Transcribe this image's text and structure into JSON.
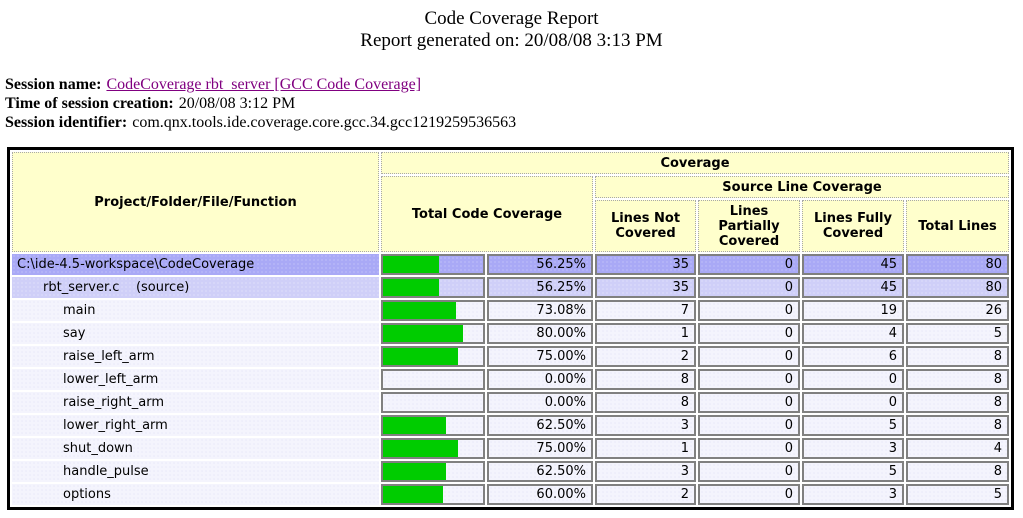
{
  "page": {
    "title": "Code Coverage Report",
    "subtitle": "Report generated on: 20/08/08 3:13 PM"
  },
  "session": {
    "name_label": "Session name:",
    "name_link": "CodeCoverage rbt_server [GCC Code Coverage]",
    "time_label": "Time of session creation:",
    "time_value": "20/08/08 3:12 PM",
    "id_label": "Session identifier:",
    "id_value": "com.qnx.tools.ide.coverage.core.gcc.34.gcc1219259536563"
  },
  "table": {
    "headers": {
      "name": "Project/Folder/File/Function",
      "coverage": "Coverage",
      "total_code_coverage": "Total Code Coverage",
      "source_line_coverage": "Source Line Coverage",
      "lines_not_covered": "Lines Not Covered",
      "lines_partially_covered": "Lines Partially Covered",
      "lines_fully_covered": "Lines Fully Covered",
      "total_lines": "Total Lines"
    },
    "rows": [
      {
        "level": "project",
        "name": "C:\\ide-4.5-workspace\\CodeCoverage",
        "percent": 56.25,
        "percent_label": "56.25%",
        "not_covered": "35",
        "partially_covered": "0",
        "fully_covered": "45",
        "total_lines": "80"
      },
      {
        "level": "file",
        "name": "rbt_server.c    (source)",
        "percent": 56.25,
        "percent_label": "56.25%",
        "not_covered": "35",
        "partially_covered": "0",
        "fully_covered": "45",
        "total_lines": "80"
      },
      {
        "level": "function",
        "name": "main",
        "percent": 73.08,
        "percent_label": "73.08%",
        "not_covered": "7",
        "partially_covered": "0",
        "fully_covered": "19",
        "total_lines": "26"
      },
      {
        "level": "function",
        "name": "say",
        "percent": 80.0,
        "percent_label": "80.00%",
        "not_covered": "1",
        "partially_covered": "0",
        "fully_covered": "4",
        "total_lines": "5"
      },
      {
        "level": "function",
        "name": "raise_left_arm",
        "percent": 75.0,
        "percent_label": "75.00%",
        "not_covered": "2",
        "partially_covered": "0",
        "fully_covered": "6",
        "total_lines": "8"
      },
      {
        "level": "function",
        "name": "lower_left_arm",
        "percent": 0.0,
        "percent_label": "0.00%",
        "not_covered": "8",
        "partially_covered": "0",
        "fully_covered": "0",
        "total_lines": "8"
      },
      {
        "level": "function",
        "name": "raise_right_arm",
        "percent": 0.0,
        "percent_label": "0.00%",
        "not_covered": "8",
        "partially_covered": "0",
        "fully_covered": "0",
        "total_lines": "8"
      },
      {
        "level": "function",
        "name": "lower_right_arm",
        "percent": 62.5,
        "percent_label": "62.50%",
        "not_covered": "3",
        "partially_covered": "0",
        "fully_covered": "5",
        "total_lines": "8"
      },
      {
        "level": "function",
        "name": "shut_down",
        "percent": 75.0,
        "percent_label": "75.00%",
        "not_covered": "1",
        "partially_covered": "0",
        "fully_covered": "3",
        "total_lines": "4"
      },
      {
        "level": "function",
        "name": "handle_pulse",
        "percent": 62.5,
        "percent_label": "62.50%",
        "not_covered": "3",
        "partially_covered": "0",
        "fully_covered": "5",
        "total_lines": "8"
      },
      {
        "level": "function",
        "name": "options",
        "percent": 60.0,
        "percent_label": "60.00%",
        "not_covered": "2",
        "partially_covered": "0",
        "fully_covered": "3",
        "total_lines": "5"
      }
    ]
  },
  "colors": {
    "header_bg": "#ffffcc",
    "row_project_bg": "#a9a9f6",
    "row_file_bg": "#cfcff8",
    "row_function_bg": "#f4f4fd",
    "bar_green": "#00cc00",
    "link_purple": "#800080",
    "table_border": "#000000",
    "cell_border": "#808080"
  }
}
